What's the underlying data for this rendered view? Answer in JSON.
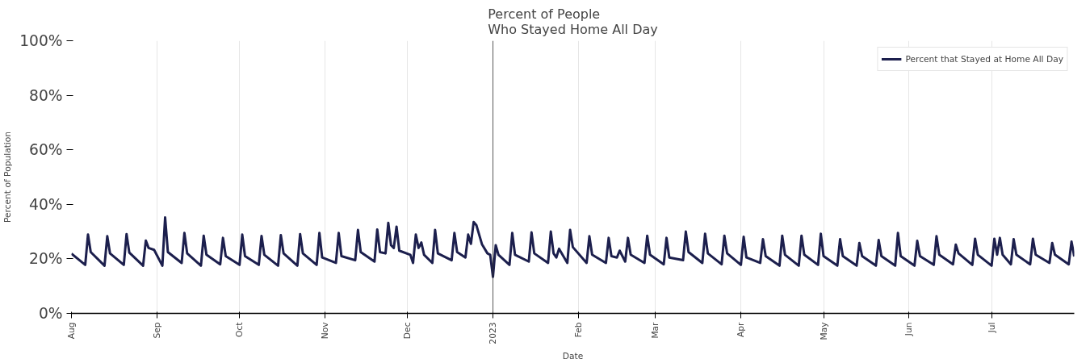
{
  "chart_data": {
    "type": "line",
    "title": "Percent of People\nWho Stayed Home All Day",
    "xlabel": "Date",
    "ylabel": "Percent of Population",
    "xlim": [
      "2022-08-01",
      "2023-07-31"
    ],
    "xticks": [
      {
        "value": "2022-08-01",
        "label": "Aug"
      },
      {
        "value": "2022-09-01",
        "label": "Sep"
      },
      {
        "value": "2022-10-01",
        "label": "Oct"
      },
      {
        "value": "2022-11-01",
        "label": "Nov"
      },
      {
        "value": "2022-12-01",
        "label": "Dec"
      },
      {
        "value": "2023-01-01",
        "label": "2023"
      },
      {
        "value": "2023-02-01",
        "label": "Feb"
      },
      {
        "value": "2023-03-01",
        "label": "Mar"
      },
      {
        "value": "2023-04-01",
        "label": "Apr"
      },
      {
        "value": "2023-05-01",
        "label": "May"
      },
      {
        "value": "2023-06-01",
        "label": "Jun"
      },
      {
        "value": "2023-07-01",
        "label": "Jul"
      }
    ],
    "ylim": [
      0,
      100
    ],
    "yticks": [
      {
        "value": 0,
        "label": "0%"
      },
      {
        "value": 20,
        "label": "20%"
      },
      {
        "value": 40,
        "label": "40%"
      },
      {
        "value": 60,
        "label": "60%"
      },
      {
        "value": 80,
        "label": "80%"
      },
      {
        "value": 100,
        "label": "100%"
      }
    ],
    "grid": "x",
    "legend": "top right",
    "marker": "none",
    "line_style": "solid",
    "ref_lines": [
      {
        "axis": "x",
        "value": "2023-01-01",
        "color": "#333333"
      }
    ],
    "series": [
      {
        "name": "Percent that Stayed at Home All Day",
        "color": "#1c1f4d",
        "x": [
          "2022-08-01",
          "2022-08-06",
          "2022-08-07",
          "2022-08-08",
          "2022-08-13",
          "2022-08-14",
          "2022-08-15",
          "2022-08-20",
          "2022-08-21",
          "2022-08-22",
          "2022-08-27",
          "2022-08-28",
          "2022-08-29",
          "2022-08-31",
          "2022-09-03",
          "2022-09-04",
          "2022-09-05",
          "2022-09-10",
          "2022-09-11",
          "2022-09-12",
          "2022-09-17",
          "2022-09-18",
          "2022-09-19",
          "2022-09-24",
          "2022-09-25",
          "2022-09-26",
          "2022-10-01",
          "2022-10-02",
          "2022-10-03",
          "2022-10-08",
          "2022-10-09",
          "2022-10-10",
          "2022-10-15",
          "2022-10-16",
          "2022-10-17",
          "2022-10-22",
          "2022-10-23",
          "2022-10-24",
          "2022-10-29",
          "2022-10-30",
          "2022-10-31",
          "2022-11-05",
          "2022-11-06",
          "2022-11-07",
          "2022-11-12",
          "2022-11-13",
          "2022-11-14",
          "2022-11-19",
          "2022-11-20",
          "2022-11-21",
          "2022-11-23",
          "2022-11-24",
          "2022-11-25",
          "2022-11-26",
          "2022-11-27",
          "2022-11-28",
          "2022-12-02",
          "2022-12-03",
          "2022-12-04",
          "2022-12-05",
          "2022-12-06",
          "2022-12-07",
          "2022-12-10",
          "2022-12-11",
          "2022-12-12",
          "2022-12-17",
          "2022-12-18",
          "2022-12-19",
          "2022-12-22",
          "2022-12-23",
          "2022-12-24",
          "2022-12-25",
          "2022-12-26",
          "2022-12-28",
          "2022-12-30",
          "2022-12-31",
          "2023-01-01",
          "2023-01-02",
          "2023-01-03",
          "2023-01-07",
          "2023-01-08",
          "2023-01-09",
          "2023-01-14",
          "2023-01-15",
          "2023-01-16",
          "2023-01-21",
          "2023-01-22",
          "2023-01-23",
          "2023-01-24",
          "2023-01-25",
          "2023-01-28",
          "2023-01-29",
          "2023-01-30",
          "2023-02-04",
          "2023-02-05",
          "2023-02-06",
          "2023-02-11",
          "2023-02-12",
          "2023-02-13",
          "2023-02-15",
          "2023-02-16",
          "2023-02-18",
          "2023-02-19",
          "2023-02-20",
          "2023-02-25",
          "2023-02-26",
          "2023-02-27",
          "2023-03-04",
          "2023-03-05",
          "2023-03-06",
          "2023-03-11",
          "2023-03-12",
          "2023-03-13",
          "2023-03-18",
          "2023-03-19",
          "2023-03-20",
          "2023-03-25",
          "2023-03-26",
          "2023-03-27",
          "2023-04-01",
          "2023-04-02",
          "2023-04-03",
          "2023-04-08",
          "2023-04-09",
          "2023-04-10",
          "2023-04-15",
          "2023-04-16",
          "2023-04-17",
          "2023-04-22",
          "2023-04-23",
          "2023-04-24",
          "2023-04-29",
          "2023-04-30",
          "2023-05-01",
          "2023-05-06",
          "2023-05-07",
          "2023-05-08",
          "2023-05-13",
          "2023-05-14",
          "2023-05-15",
          "2023-05-20",
          "2023-05-21",
          "2023-05-22",
          "2023-05-27",
          "2023-05-28",
          "2023-05-29",
          "2023-06-03",
          "2023-06-04",
          "2023-06-05",
          "2023-06-10",
          "2023-06-11",
          "2023-06-12",
          "2023-06-17",
          "2023-06-18",
          "2023-06-19",
          "2023-06-24",
          "2023-06-25",
          "2023-06-26",
          "2023-07-01",
          "2023-07-02",
          "2023-07-03",
          "2023-07-04",
          "2023-07-05",
          "2023-07-08",
          "2023-07-09",
          "2023-07-10",
          "2023-07-15",
          "2023-07-16",
          "2023-07-17",
          "2023-07-22",
          "2023-07-23",
          "2023-07-24",
          "2023-07-29",
          "2023-07-30",
          "2023-07-31"
        ],
        "values": [
          21.9,
          17.8,
          28.9,
          22.5,
          17.5,
          28.3,
          22,
          17.8,
          29.1,
          22.3,
          17.5,
          26.7,
          24,
          23.3,
          17.5,
          35.2,
          22.5,
          18.5,
          29.5,
          22,
          17.5,
          28.5,
          21.5,
          18,
          27.7,
          21,
          17.8,
          28.9,
          21,
          17.8,
          28.4,
          21.5,
          17.5,
          28.7,
          22,
          17.5,
          29.1,
          22,
          17.8,
          29.5,
          20.5,
          18.5,
          29.5,
          21,
          19.5,
          30.6,
          22.5,
          19,
          30.8,
          22.5,
          22,
          33.2,
          25,
          24,
          31.8,
          23,
          21.5,
          18.5,
          28.9,
          24,
          26,
          21.5,
          18.5,
          30.6,
          22,
          19.5,
          29.5,
          22.5,
          20.5,
          28.9,
          25.5,
          33.5,
          32.3,
          25.4,
          22,
          21.5,
          13.4,
          25,
          21.5,
          17.8,
          29.5,
          21.5,
          19,
          29.7,
          22,
          18.5,
          30,
          22,
          20.5,
          23.7,
          18.5,
          30.6,
          24.3,
          18.5,
          28.3,
          21.5,
          18.5,
          27.7,
          21,
          20.5,
          23,
          19,
          27.7,
          21.5,
          18.5,
          28.5,
          21.5,
          18,
          27.7,
          20.5,
          19.5,
          30,
          22.5,
          18.5,
          29.2,
          22,
          18,
          28.5,
          22,
          17.8,
          28.1,
          20.5,
          18.5,
          27.2,
          21,
          17.5,
          28.5,
          21.5,
          17.5,
          28.5,
          21.5,
          17.8,
          29.2,
          21,
          17.5,
          27.2,
          21,
          17.5,
          25.8,
          21,
          17.5,
          26.9,
          21,
          17.5,
          29.5,
          21,
          17.5,
          26.6,
          21,
          17.8,
          28.3,
          21.5,
          18,
          25.2,
          22,
          17.8,
          27.4,
          21.5,
          17.5,
          27.4,
          21.5,
          27.7,
          21.5,
          18,
          27.2,
          21.5,
          18,
          27.4,
          21.5,
          18.5,
          25.8,
          21.5,
          18,
          26.3,
          20.9
        ]
      }
    ]
  }
}
